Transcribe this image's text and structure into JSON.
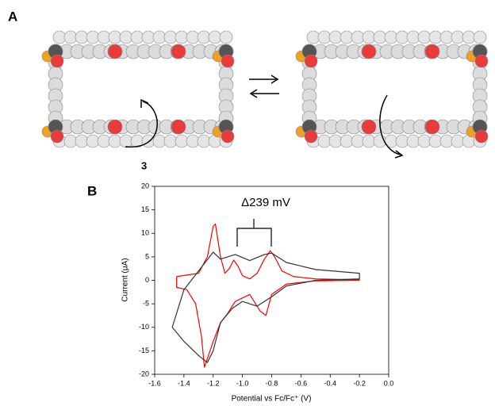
{
  "figure": {
    "panel_labels": [
      "A",
      "B"
    ],
    "compound_label": "3"
  },
  "chart_data": {
    "type": "line",
    "annotation": "Δ239 mV",
    "x_label": "Potential vs Fc/Fc⁺ (V)",
    "y_label": "Current (μA)",
    "xlim": [
      -1.6,
      0
    ],
    "ylim": [
      -20,
      20
    ],
    "xticks": [
      -1.6,
      -1.4,
      -1.2,
      {
        "value": -1,
        "label": "-1.0"
      },
      -0.8,
      -0.6,
      -0.4,
      -0.2,
      {
        "value": 0,
        "label": "0.0"
      }
    ],
    "yticks": [
      -20,
      -15,
      -10,
      -5,
      0,
      5,
      10,
      15,
      20
    ],
    "series": [
      {
        "color": "#ff0000",
        "x": [
          -1.45,
          -1.3,
          -1.24,
          -1.2,
          -1.185,
          -1.15,
          -1.12,
          -1.09,
          -1.06,
          -1.03,
          -1.0,
          -0.95,
          -0.9,
          -0.85,
          -0.81,
          -0.78,
          -0.73,
          -0.65,
          -0.5,
          -0.2,
          -0.2,
          -0.5,
          -0.7,
          -0.8,
          -0.84,
          -0.88,
          -0.95,
          -1.05,
          -1.1,
          -1.15,
          -1.2,
          -1.26,
          -1.28,
          -1.32,
          -1.38,
          -1.45,
          -1.45
        ],
        "values": [
          0.8,
          1.5,
          5,
          11.5,
          12,
          5,
          1.5,
          2.5,
          4.3,
          3,
          1,
          0.3,
          1.5,
          4.5,
          6.3,
          5,
          2,
          0.8,
          0.3,
          0.1,
          0,
          -0.1,
          -0.8,
          -3,
          -7.5,
          -6.5,
          -3,
          -4.5,
          -7,
          -9,
          -13,
          -18.5,
          -12,
          -5,
          -2,
          -1.5,
          0.8
        ]
      },
      {
        "color": "#333333",
        "x": [
          -1.48,
          -1.4,
          -1.3,
          -1.2,
          -1.15,
          -1.05,
          -0.95,
          -0.85,
          -0.8,
          -0.7,
          -0.5,
          -0.2,
          -0.2,
          -0.5,
          -0.7,
          -0.8,
          -0.9,
          -1.0,
          -1.07,
          -1.15,
          -1.2,
          -1.24,
          -1.3,
          -1.4,
          -1.48
        ],
        "values": [
          -10,
          -2,
          2,
          6,
          4.5,
          5.5,
          4.2,
          5.5,
          5.8,
          3.8,
          2.3,
          1.5,
          0.3,
          0,
          -1.2,
          -3.5,
          -5.5,
          -4.5,
          -6,
          -9,
          -15,
          -17.5,
          -16,
          -13,
          -10
        ]
      }
    ]
  }
}
